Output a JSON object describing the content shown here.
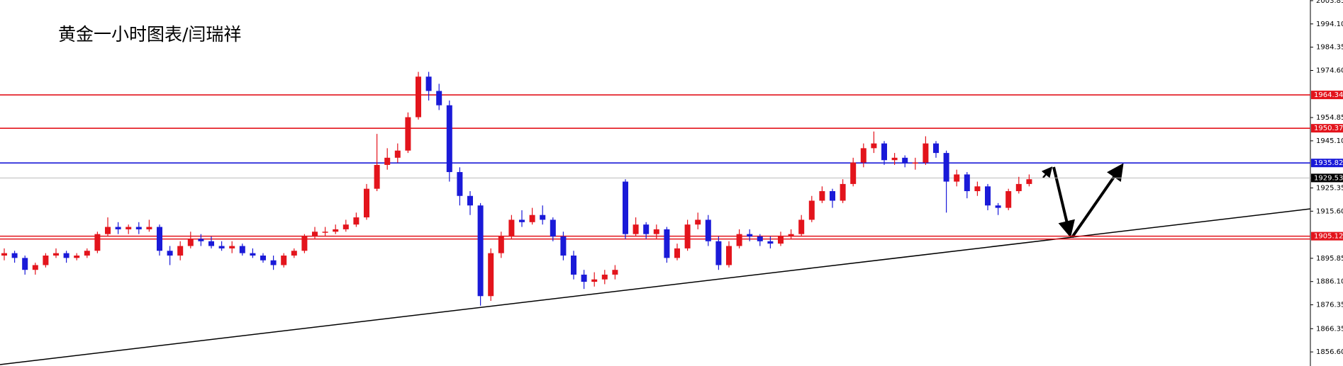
{
  "chart_data": {
    "type": "candlestick",
    "title": "黄金一小时图表/闫瑞祥",
    "ylim": [
      1850.7,
      2004.13
    ],
    "yticks": [
      2003.85,
      {
        "value": 1994.1,
        "label": "1994.10"
      },
      1984.35,
      {
        "value": 1974.6,
        "label": "1974.60"
      },
      1954.85,
      {
        "value": 1945.1,
        "label": "1945.10"
      },
      1925.35,
      {
        "value": 1915.6,
        "label": "1915.60"
      },
      1895.85,
      {
        "value": 1886.1,
        "label": "1886.10"
      },
      1876.35,
      1866.35,
      {
        "value": 1856.6,
        "label": "1856.60"
      }
    ],
    "up_color": "#e3141c",
    "down_color": "#1a1ad8",
    "levels": [
      {
        "value": 1964.34,
        "color": "#e3141c"
      },
      {
        "value": 1950.37,
        "color": "#e3141c"
      },
      {
        "value": 1935.82,
        "color": "#1a1ad8"
      },
      {
        "value": 1929.53,
        "color": "#000000"
      },
      {
        "value": 1905.12,
        "color": "#e3141c"
      }
    ],
    "candles": [
      [
        1897,
        1900,
        1895,
        1898
      ],
      [
        1898,
        1899,
        1894,
        1896
      ],
      [
        1896,
        1897,
        1889,
        1891
      ],
      [
        1891,
        1894,
        1889,
        1893
      ],
      [
        1893,
        1898,
        1892,
        1897
      ],
      [
        1897,
        1900,
        1896,
        1898
      ],
      [
        1898,
        1899,
        1894,
        1896
      ],
      [
        1896,
        1898,
        1895,
        1897
      ],
      [
        1897,
        1900,
        1896,
        1899
      ],
      [
        1899,
        1907,
        1898,
        1906
      ],
      [
        1906,
        1913,
        1905,
        1909
      ],
      [
        1909,
        1911,
        1906,
        1908
      ],
      [
        1908,
        1910,
        1906,
        1909
      ],
      [
        1909,
        1911,
        1906,
        1908
      ],
      [
        1908,
        1912,
        1907,
        1909
      ],
      [
        1909,
        1910,
        1897,
        1899
      ],
      [
        1899,
        1901,
        1893,
        1897
      ],
      [
        1897,
        1903,
        1895,
        1901
      ],
      [
        1901,
        1907,
        1900,
        1904
      ],
      [
        1904,
        1906,
        1901,
        1903
      ],
      [
        1903,
        1905,
        1900,
        1901
      ],
      [
        1901,
        1903,
        1899,
        1900
      ],
      [
        1900,
        1903,
        1898,
        1901
      ],
      [
        1901,
        1902,
        1897,
        1898
      ],
      [
        1898,
        1900,
        1896,
        1897
      ],
      [
        1897,
        1898,
        1894,
        1895
      ],
      [
        1895,
        1897,
        1891,
        1893
      ],
      [
        1893,
        1898,
        1892,
        1897
      ],
      [
        1897,
        1900,
        1896,
        1899
      ],
      [
        1899,
        1906,
        1898,
        1905
      ],
      [
        1905,
        1909,
        1904,
        1907
      ],
      [
        1907,
        1909,
        1905,
        1907
      ],
      [
        1907,
        1910,
        1906,
        1908
      ],
      [
        1908,
        1912,
        1907,
        1910
      ],
      [
        1910,
        1915,
        1909,
        1913
      ],
      [
        1913,
        1927,
        1912,
        1925
      ],
      [
        1925,
        1948,
        1924,
        1935
      ],
      [
        1935,
        1942,
        1933,
        1938
      ],
      [
        1938,
        1944,
        1936,
        1941
      ],
      [
        1941,
        1957,
        1940,
        1955
      ],
      [
        1955,
        1974,
        1954,
        1972
      ],
      [
        1972,
        1974,
        1962,
        1966
      ],
      [
        1966,
        1969,
        1958,
        1960
      ],
      [
        1960,
        1962,
        1928,
        1932
      ],
      [
        1932,
        1934,
        1918,
        1922
      ],
      [
        1922,
        1924,
        1914,
        1918
      ],
      [
        1918,
        1919,
        1876,
        1880
      ],
      [
        1880,
        1900,
        1878,
        1898
      ],
      [
        1898,
        1907,
        1896,
        1905
      ],
      [
        1905,
        1914,
        1904,
        1912
      ],
      [
        1912,
        1916,
        1909,
        1911
      ],
      [
        1911,
        1917,
        1910,
        1914
      ],
      [
        1914,
        1918,
        1910,
        1912
      ],
      [
        1912,
        1913,
        1903,
        1905
      ],
      [
        1905,
        1907,
        1895,
        1897
      ],
      [
        1897,
        1899,
        1887,
        1889
      ],
      [
        1889,
        1891,
        1883,
        1886
      ],
      [
        1886,
        1890,
        1884,
        1887
      ],
      [
        1887,
        1891,
        1885,
        1889
      ],
      [
        1889,
        1893,
        1887,
        1891
      ],
      [
        1928,
        1929,
        1904,
        1906
      ],
      [
        1906,
        1913,
        1905,
        1910
      ],
      [
        1910,
        1911,
        1904,
        1906
      ],
      [
        1906,
        1910,
        1904,
        1908
      ],
      [
        1908,
        1909,
        1894,
        1896
      ],
      [
        1896,
        1902,
        1895,
        1900
      ],
      [
        1900,
        1912,
        1899,
        1910
      ],
      [
        1910,
        1915,
        1908,
        1912
      ],
      [
        1912,
        1914,
        1901,
        1903
      ],
      [
        1903,
        1905,
        1891,
        1893
      ],
      [
        1893,
        1903,
        1892,
        1901
      ],
      [
        1901,
        1908,
        1900,
        1906
      ],
      [
        1906,
        1908,
        1903,
        1905
      ],
      [
        1905,
        1906,
        1901,
        1903
      ],
      [
        1903,
        1905,
        1900,
        1902
      ],
      [
        1902,
        1907,
        1901,
        1905
      ],
      [
        1905,
        1908,
        1904,
        1906
      ],
      [
        1906,
        1914,
        1905,
        1912
      ],
      [
        1912,
        1922,
        1911,
        1920
      ],
      [
        1920,
        1926,
        1919,
        1924
      ],
      [
        1924,
        1925,
        1917,
        1920
      ],
      [
        1920,
        1929,
        1919,
        1927
      ],
      [
        1927,
        1938,
        1926,
        1936
      ],
      [
        1936,
        1944,
        1934,
        1942
      ],
      [
        1942,
        1949,
        1940,
        1944
      ],
      [
        1944,
        1945,
        1935,
        1937
      ],
      [
        1937,
        1940,
        1935,
        1938
      ],
      [
        1938,
        1939,
        1934,
        1936
      ],
      [
        1936,
        1938,
        1933,
        1936
      ],
      [
        1936,
        1947,
        1935,
        1944
      ],
      [
        1944,
        1945,
        1938,
        1940
      ],
      [
        1940,
        1941,
        1915,
        1928
      ],
      [
        1928,
        1933,
        1926,
        1931
      ],
      [
        1931,
        1932,
        1921,
        1924
      ],
      [
        1924,
        1928,
        1922,
        1926
      ],
      [
        1926,
        1927,
        1916,
        1918
      ],
      [
        1918,
        1919,
        1914,
        1917
      ],
      [
        1917,
        1925,
        1916,
        1924
      ],
      [
        1924,
        1930,
        1923,
        1927
      ],
      [
        1927,
        1931,
        1926,
        1929
      ]
    ]
  }
}
